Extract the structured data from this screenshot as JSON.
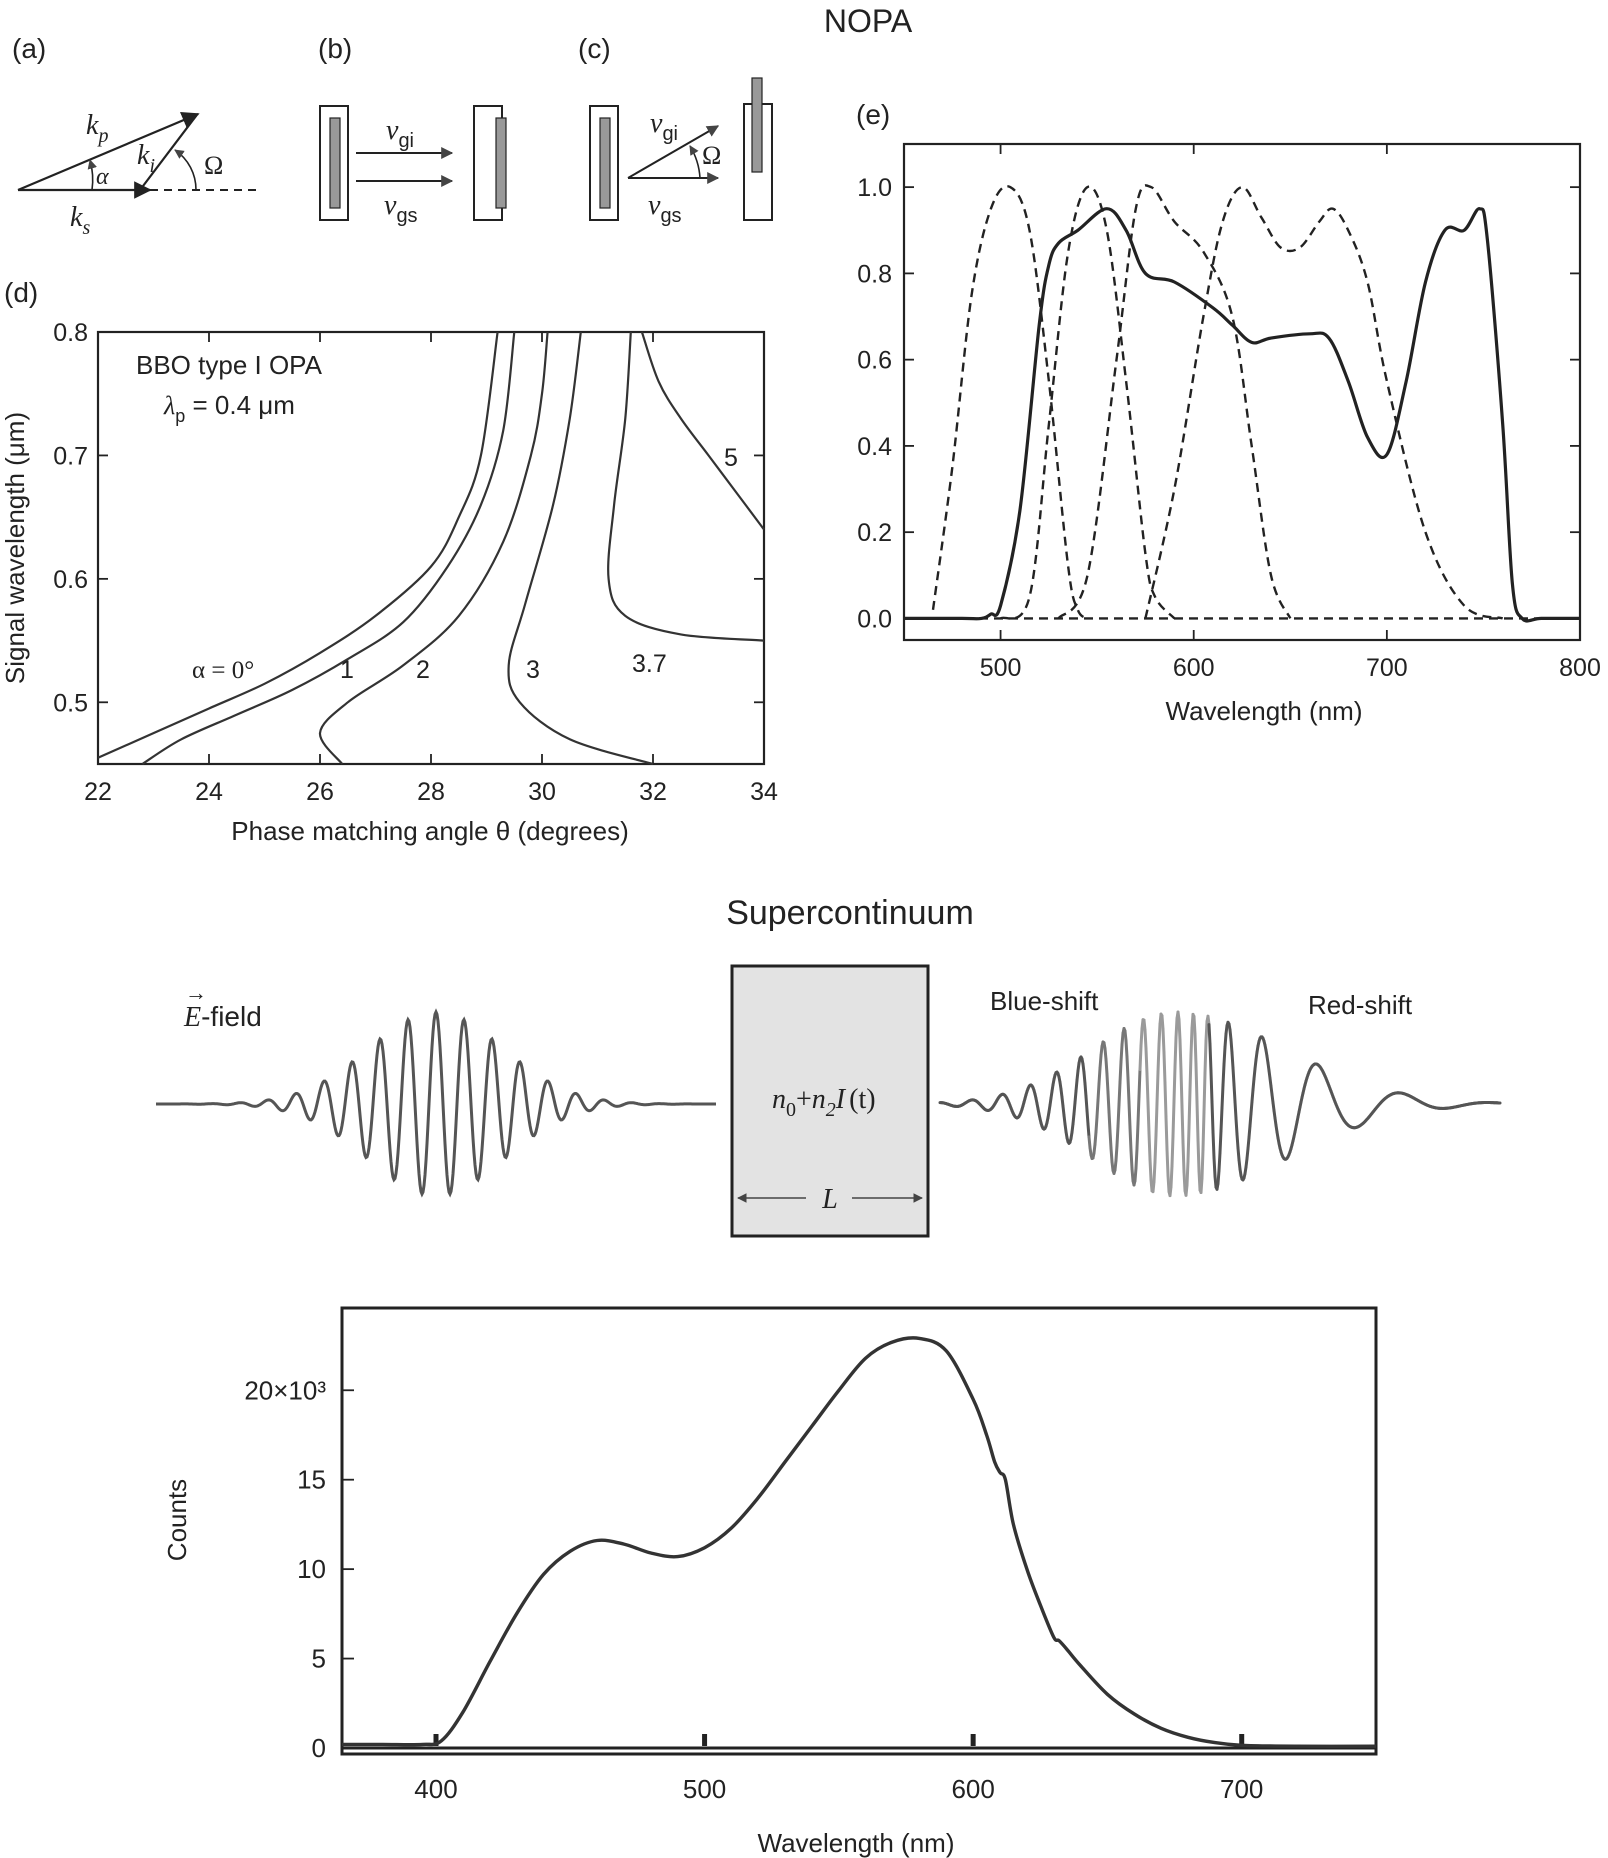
{
  "nopa": {
    "section_title": "NOPA",
    "panel_a": {
      "label": "(a)",
      "k_p": "k",
      "k_p_sub": "p",
      "k_i": "k",
      "k_i_sub": "i",
      "k_s": "k",
      "k_s_sub": "s",
      "alpha": "α",
      "omega": "Ω"
    },
    "panel_b": {
      "label": "(b)",
      "v_gi": "v",
      "v_gi_sub": "gi",
      "v_gs": "v",
      "v_gs_sub": "gs"
    },
    "panel_c": {
      "label": "(c)",
      "v_gi": "v",
      "v_gi_sub": "gi",
      "v_gs": "v",
      "v_gs_sub": "gs",
      "omega": "Ω"
    },
    "panel_d": {
      "label": "(d)",
      "annotation_line1": "BBO type I OPA",
      "annotation_line2_sym": "λ",
      "annotation_line2_sub": "p",
      "annotation_line2_rest": " = 0.4 μm",
      "xlabel": "Phase matching angle θ (degrees)",
      "ylabel": "Signal wavelength (μm)",
      "curve_labels": [
        "α = 0°",
        "1",
        "2",
        "3",
        "3.7",
        "5"
      ]
    },
    "panel_e": {
      "label": "(e)",
      "xlabel": "Wavelength (nm)"
    }
  },
  "supercontinuum": {
    "section_title": "Supercontinuum",
    "efield_arrow": "→",
    "efield_sym": "E",
    "efield_rest": "-field",
    "blue_shift": "Blue-shift",
    "red_shift": "Red-shift",
    "medium_n0": "n",
    "medium_n0_sub": "0",
    "medium_plus": "+",
    "medium_n2": "n",
    "medium_n2_sub": "2",
    "medium_I": "I",
    "medium_t": "(t)",
    "length_label": "L",
    "spectrum": {
      "xlabel": "Wavelength (nm)",
      "ylabel": "Counts"
    }
  },
  "chart_data": [
    {
      "type": "line",
      "id": "panel-d",
      "xlabel": "Phase matching angle θ (degrees)",
      "ylabel": "Signal wavelength (μm)",
      "xlim": [
        22,
        34
      ],
      "ylim": [
        0.45,
        0.8
      ],
      "xticks": [
        "22",
        "24",
        "26",
        "28",
        "30",
        "32",
        "34"
      ],
      "yticks": [
        "0.5",
        "0.6",
        "0.7",
        "0.8"
      ],
      "series": [
        {
          "name": "α = 0°",
          "x": [
            22,
            23,
            24,
            25,
            26,
            27,
            28,
            28.5,
            28.9,
            29.2
          ],
          "y": [
            0.455,
            0.475,
            0.495,
            0.515,
            0.54,
            0.57,
            0.61,
            0.65,
            0.7,
            0.8
          ]
        },
        {
          "name": "1",
          "x": [
            22.8,
            23.5,
            24.5,
            25.5,
            26.5,
            27.5,
            28.3,
            28.9,
            29.3,
            29.5
          ],
          "y": [
            0.45,
            0.47,
            0.49,
            0.51,
            0.535,
            0.565,
            0.61,
            0.66,
            0.72,
            0.8
          ]
        },
        {
          "name": "2",
          "x": [
            26.4,
            26,
            26.5,
            27.5,
            28.5,
            29.3,
            29.8,
            30,
            30.1
          ],
          "y": [
            0.45,
            0.475,
            0.5,
            0.53,
            0.57,
            0.63,
            0.7,
            0.75,
            0.8
          ]
        },
        {
          "name": "3",
          "x": [
            32,
            30.5,
            29.6,
            29.4,
            29.7,
            30.2,
            30.5,
            30.7
          ],
          "y": [
            0.45,
            0.47,
            0.5,
            0.53,
            0.58,
            0.66,
            0.73,
            0.8
          ]
        },
        {
          "name": "3.7",
          "x": [
            34,
            32.5,
            31.5,
            31.2,
            31.3,
            31.5,
            31.6
          ],
          "y": [
            0.55,
            0.555,
            0.57,
            0.6,
            0.66,
            0.73,
            0.8
          ]
        },
        {
          "name": "5",
          "x": [
            34,
            33.5,
            33,
            32.5,
            32.1,
            31.8
          ],
          "y": [
            0.64,
            0.67,
            0.7,
            0.73,
            0.76,
            0.8
          ]
        }
      ]
    },
    {
      "type": "line",
      "id": "panel-e",
      "xlabel": "Wavelength (nm)",
      "xlim": [
        450,
        800
      ],
      "ylim": [
        -0.05,
        1.1
      ],
      "xticks": [
        "500",
        "600",
        "700",
        "800"
      ],
      "yticks": [
        "0.0",
        "0.2",
        "0.4",
        "0.6",
        "0.8",
        "1.0"
      ],
      "series": [
        {
          "style": "solid",
          "x": [
            450,
            480,
            490,
            495,
            500,
            510,
            520,
            525,
            530,
            540,
            555,
            565,
            575,
            590,
            610,
            620,
            630,
            640,
            660,
            670,
            680,
            690,
            700,
            710,
            720,
            730,
            740,
            748,
            752,
            760,
            765,
            770,
            780,
            800
          ],
          "y": [
            0,
            0,
            0,
            0.01,
            0.03,
            0.25,
            0.68,
            0.82,
            0.87,
            0.9,
            0.95,
            0.9,
            0.8,
            0.78,
            0.72,
            0.68,
            0.64,
            0.65,
            0.66,
            0.65,
            0.55,
            0.42,
            0.38,
            0.55,
            0.78,
            0.9,
            0.9,
            0.95,
            0.88,
            0.45,
            0.08,
            0,
            0,
            0
          ]
        },
        {
          "style": "dashed",
          "x": [
            465,
            475,
            485,
            495,
            505,
            515,
            525,
            535,
            540,
            545
          ],
          "y": [
            0.02,
            0.35,
            0.75,
            0.95,
            1.0,
            0.9,
            0.55,
            0.12,
            0.02,
            0
          ]
        },
        {
          "style": "dashed",
          "x": [
            500,
            515,
            525,
            535,
            545,
            555,
            565,
            575,
            580,
            590
          ],
          "y": [
            0,
            0.05,
            0.45,
            0.85,
            1.0,
            0.9,
            0.55,
            0.15,
            0.05,
            0
          ]
        },
        {
          "style": "dashed",
          "x": [
            530,
            545,
            560,
            570,
            578,
            590,
            605,
            620,
            630,
            640,
            650
          ],
          "y": [
            0,
            0.1,
            0.6,
            0.95,
            1.0,
            0.92,
            0.85,
            0.7,
            0.4,
            0.1,
            0
          ]
        },
        {
          "style": "dashed",
          "x": [
            575,
            590,
            605,
            615,
            625,
            635,
            645,
            655,
            665,
            672,
            680,
            690,
            700,
            720,
            740,
            760
          ],
          "y": [
            0,
            0.3,
            0.7,
            0.92,
            1.0,
            0.93,
            0.86,
            0.86,
            0.92,
            0.95,
            0.9,
            0.78,
            0.55,
            0.2,
            0.03,
            0
          ]
        }
      ]
    },
    {
      "type": "line",
      "id": "supercontinuum-spectrum",
      "xlabel": "Wavelength (nm)",
      "ylabel": "Counts",
      "xlim": [
        365,
        750
      ],
      "ylim": [
        0,
        23000
      ],
      "xticks": [
        "400",
        "500",
        "600",
        "700"
      ],
      "yticks": [
        "0",
        "5",
        "10",
        "15",
        "20×10³"
      ],
      "series": [
        {
          "x": [
            365,
            380,
            395,
            402,
            410,
            420,
            430,
            440,
            450,
            460,
            470,
            480,
            490,
            500,
            510,
            520,
            530,
            540,
            550,
            560,
            570,
            580,
            590,
            600,
            605,
            608,
            610,
            612,
            615,
            620,
            625,
            630,
            632,
            635,
            640,
            650,
            660,
            670,
            680,
            690,
            700,
            720,
            750
          ],
          "y": [
            200,
            200,
            200,
            400,
            2000,
            4800,
            7500,
            9700,
            11000,
            11600,
            11400,
            10900,
            10700,
            11200,
            12300,
            14000,
            16000,
            18000,
            20000,
            21800,
            22700,
            22900,
            22200,
            19500,
            17500,
            16000,
            15400,
            15000,
            12500,
            10000,
            8000,
            6200,
            6000,
            5500,
            4600,
            3000,
            1900,
            1100,
            600,
            300,
            150,
            100,
            100
          ]
        }
      ]
    }
  ]
}
